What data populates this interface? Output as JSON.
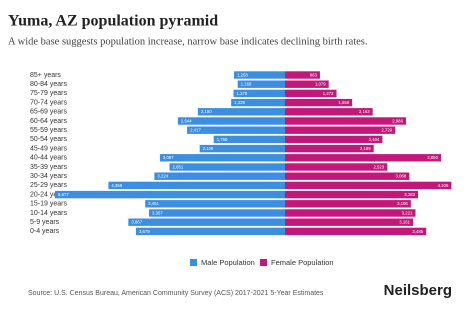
{
  "chart_data": {
    "type": "pyramid",
    "title": "Yuma, AZ population pyramid",
    "subtitle": "A wide base suggests population increase, narrow base indicates declining birth rates.",
    "categories": [
      "85+ years",
      "80-84 years",
      "75-79 years",
      "70-74 years",
      "65-69 years",
      "60-64 years",
      "55-59 years",
      "50-54 years",
      "45-49 years",
      "40-44 years",
      "35-39 years",
      "30-34 years",
      "25-29 years",
      "20-24 years",
      "15-19 years",
      "10-14 years",
      "5-9 years",
      "0-4 years"
    ],
    "series": [
      {
        "name": "Male Population",
        "color": "#3b8ee0",
        "values": [
          1258,
          1168,
          1270,
          1329,
          2150,
          2644,
          2417,
          1760,
          2106,
          3087,
          2851,
          3224,
          4359,
          5677,
          3451,
          3357,
          3867,
          3679
        ],
        "value_labels": [
          "1,258",
          "1,168",
          "1,270",
          "1,329",
          "2,150",
          "2,644",
          "2,417",
          "1,760",
          "2,106",
          "3,087",
          "2,851",
          "3,224",
          "4,359",
          "5,677",
          "3,451",
          "3,357",
          "3,867",
          "3,679"
        ]
      },
      {
        "name": "Female Population",
        "color": "#c2187a",
        "values": [
          863,
          1079,
          1272,
          1658,
          2163,
          2986,
          2720,
          2404,
          2189,
          3850,
          2523,
          3068,
          4106,
          3283,
          3106,
          3221,
          3161,
          3485
        ],
        "value_labels": [
          "863",
          "1,079",
          "1,272",
          "1,658",
          "2,163",
          "2,986",
          "2,720",
          "2,404",
          "2,189",
          "3,850",
          "2,523",
          "3,068",
          "4,106",
          "3,283",
          "3,106",
          "3,221",
          "3,161",
          "3,485"
        ]
      }
    ],
    "source": "Source: U.S. Census Bureau, American Community Survey (ACS) 2017-2021 5-Year Estimates",
    "brand": "Neilsberg"
  }
}
